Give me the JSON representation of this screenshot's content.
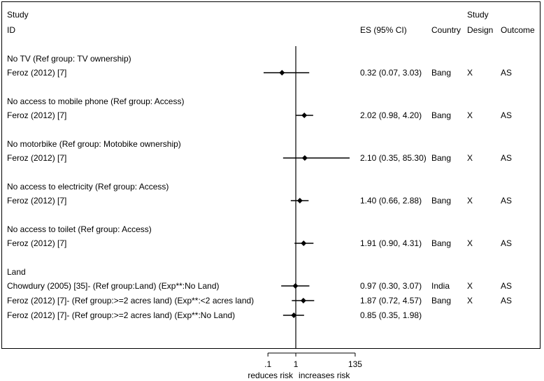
{
  "header": {
    "study_line1": "Study",
    "study_line2": "ID",
    "es_label": "ES (95% CI)",
    "country_label": "Country",
    "design_line1": "Study",
    "design_line2": "Design",
    "outcome_label": "Outcome"
  },
  "chart_data": {
    "type": "forest",
    "x_scale": "log",
    "xlim": [
      0.07,
      85.3
    ],
    "x_ticks": [
      ".1",
      "1",
      "135"
    ],
    "x_tick_values": [
      0.1,
      1,
      135
    ],
    "reference_line": 1,
    "xlabel_left": "reduces risk",
    "xlabel_right": "increases risk",
    "groups": [
      {
        "heading": "No TV (Ref group: TV ownership)",
        "studies": [
          {
            "id": "Feroz (2012) [7]",
            "es": 0.32,
            "lo": 0.07,
            "hi": 3.03,
            "es_text": "0.32 (0.07, 3.03)",
            "country": "Bang",
            "design": "X",
            "outcome": "AS"
          }
        ]
      },
      {
        "heading": "No access to mobile phone (Ref group: Access)",
        "studies": [
          {
            "id": "Feroz (2012) [7]",
            "es": 2.02,
            "lo": 0.98,
            "hi": 4.2,
            "es_text": "2.02 (0.98, 4.20)",
            "country": "Bang",
            "design": "X",
            "outcome": "AS"
          }
        ]
      },
      {
        "heading": "No motorbike (Ref group: Motobike ownership)",
        "studies": [
          {
            "id": "Feroz (2012) [7]",
            "es": 2.1,
            "lo": 0.35,
            "hi": 85.3,
            "es_text": "2.10 (0.35, 85.30)",
            "country": "Bang",
            "design": "X",
            "outcome": "AS"
          }
        ]
      },
      {
        "heading": "No access to electricity (Ref group: Access)",
        "studies": [
          {
            "id": "Feroz (2012) [7]",
            "es": 1.4,
            "lo": 0.66,
            "hi": 2.88,
            "es_text": "1.40 (0.66, 2.88)",
            "country": "Bang",
            "design": "X",
            "outcome": "AS"
          }
        ]
      },
      {
        "heading": "No access to toilet (Ref group: Access)",
        "studies": [
          {
            "id": "Feroz (2012) [7]",
            "es": 1.91,
            "lo": 0.9,
            "hi": 4.31,
            "es_text": "1.91 (0.90, 4.31)",
            "country": "Bang",
            "design": "X",
            "outcome": "AS"
          }
        ]
      },
      {
        "heading": "Land",
        "studies": [
          {
            "id": "Chowdury (2005) [35]- (Ref group:Land) (Exp**:No Land)",
            "es": 0.97,
            "lo": 0.3,
            "hi": 3.07,
            "es_text": "0.97 (0.30, 3.07)",
            "country": "India",
            "design": "X",
            "outcome": "AS"
          },
          {
            "id": "Feroz (2012) [7]- (Ref group:>=2 acres land) (Exp**:<2 acres land)",
            "es": 1.87,
            "lo": 0.72,
            "hi": 4.57,
            "es_text": "1.87 (0.72, 4.57)",
            "country": "Bang",
            "design": "X",
            "outcome": "AS"
          },
          {
            "id": "Feroz (2012) [7]- (Ref group:>=2 acres land) (Exp**:No Land)",
            "es": 0.85,
            "lo": 0.35,
            "hi": 1.98,
            "es_text": "0.85 (0.35, 1.98)",
            "country": "",
            "design": "",
            "outcome": ""
          }
        ]
      }
    ]
  }
}
